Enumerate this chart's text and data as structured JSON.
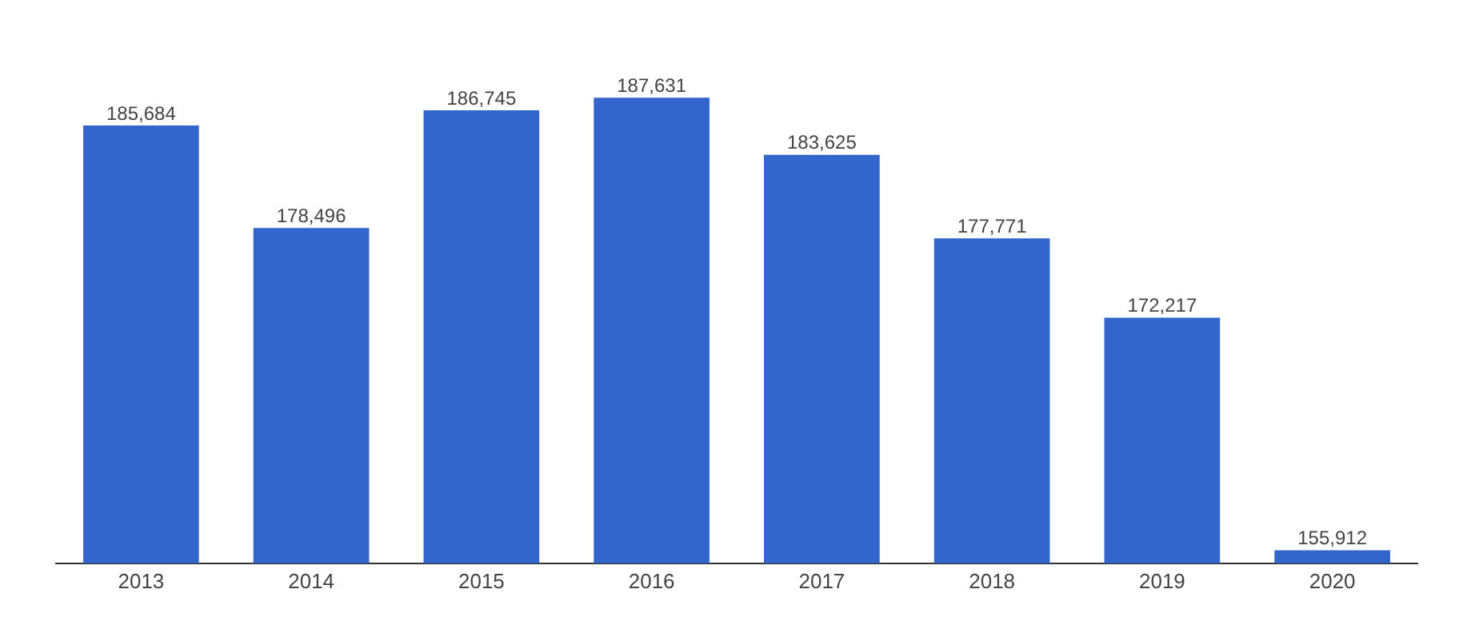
{
  "chart_data": {
    "type": "bar",
    "categories": [
      "2013",
      "2014",
      "2015",
      "2016",
      "2017",
      "2018",
      "2019",
      "2020"
    ],
    "values": [
      185684,
      178496,
      186745,
      187631,
      183625,
      177771,
      172217,
      155912
    ],
    "value_labels": [
      "185,684",
      "178,496",
      "186,745",
      "187,631",
      "183,625",
      "177,771",
      "172,217",
      "155,912"
    ],
    "color": "#3366cc",
    "grid": false,
    "legend": false,
    "tick_labels": "x"
  }
}
